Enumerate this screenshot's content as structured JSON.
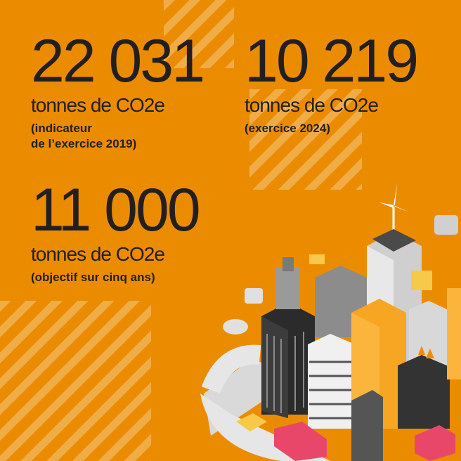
{
  "colors": {
    "background": "#EB8C00",
    "text": "#231f20"
  },
  "stats": [
    {
      "value": "22 031",
      "unit": "tonnes de CO2e",
      "note": "(indicateur\nde l’exercice 2019)"
    },
    {
      "value": "10 219",
      "unit": "tonnes de CO2e",
      "note": "(exercice 2024)"
    },
    {
      "value": "11 000",
      "unit": "tonnes de CO2e",
      "note": "(objectif sur cinq ans)"
    }
  ],
  "illustration": "isometric-city-icon"
}
